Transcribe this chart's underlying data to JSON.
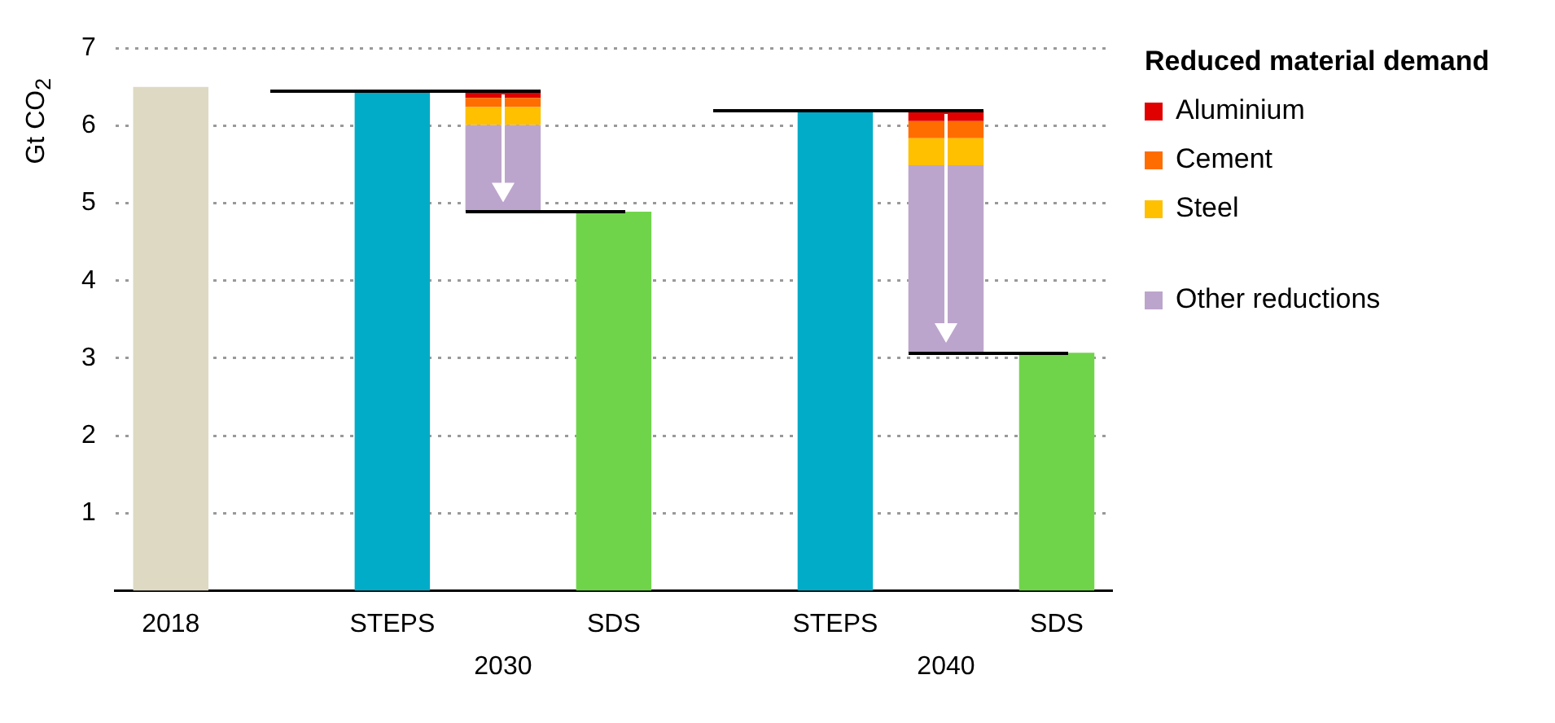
{
  "chart_data": {
    "type": "bar",
    "ylabel": "Gt CO$_{2}$",
    "categories": [
      "2018",
      null,
      "STEPS",
      null,
      "SDS",
      null,
      "STEPS",
      null,
      "SDS"
    ],
    "series": [
      {
        "colors": [
          "#ddd9c3",
          null,
          "#00acc8",
          null,
          "#70d44b",
          null,
          "#00acc8",
          null,
          "#70d44b"
        ],
        "values": [
          6.5,
          null,
          6.45,
          null,
          4.89,
          null,
          6.19,
          null,
          3.07
        ]
      },
      {
        "name": "Other reductions",
        "color": "#bca5cc",
        "values": [
          null,
          null,
          null,
          1.12,
          null,
          null,
          null,
          2.42,
          null
        ],
        "base": [
          null,
          null,
          null,
          4.89,
          null,
          null,
          null,
          3.07,
          null
        ]
      },
      {
        "name": "Steel",
        "color": "#ffc000",
        "values": [
          null,
          null,
          null,
          0.23,
          null,
          null,
          null,
          0.35,
          null
        ],
        "base": [
          null,
          null,
          null,
          6.01,
          null,
          null,
          null,
          5.49,
          null
        ]
      },
      {
        "name": "Cement",
        "color": "#ff6d00",
        "values": [
          null,
          null,
          null,
          0.12,
          null,
          null,
          null,
          0.22,
          null
        ],
        "base": [
          null,
          null,
          null,
          6.24,
          null,
          null,
          null,
          5.84,
          null
        ]
      },
      {
        "name": "Aluminium",
        "color": "#e00000",
        "values": [
          null,
          null,
          null,
          0.09,
          null,
          null,
          null,
          0.13,
          null
        ],
        "base": [
          null,
          null,
          null,
          6.36,
          null,
          null,
          null,
          6.06,
          null
        ]
      }
    ],
    "ylim": [
      0,
      7
    ],
    "yticks": [
      1,
      2,
      3,
      4,
      5,
      6,
      7
    ],
    "grid": "y",
    "legend": "right",
    "legend_title": "Reduced material demand",
    "annotations": [
      "2030",
      "2040"
    ]
  }
}
